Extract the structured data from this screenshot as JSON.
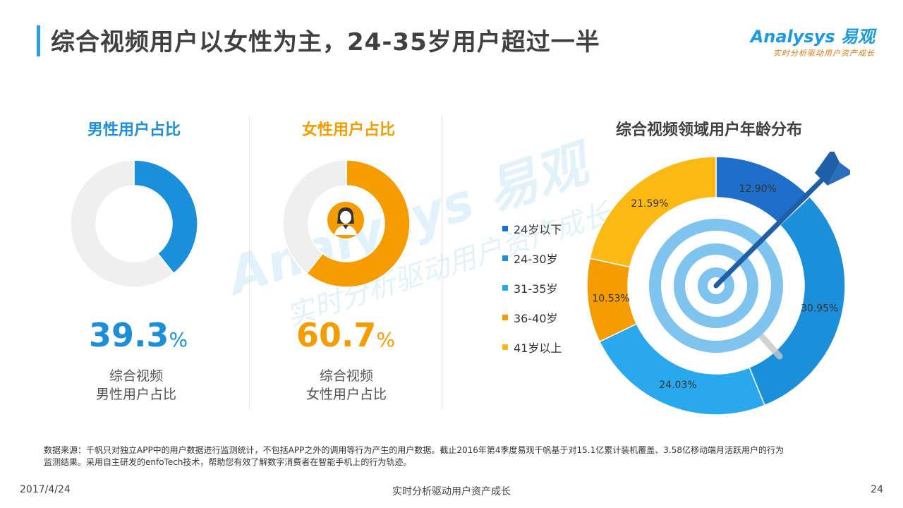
{
  "page": {
    "title": "综合视频用户以女性为主，24-35岁用户超过一半"
  },
  "logo": {
    "brand": "Analysys 易观",
    "slogan": "实时分析驱动用户资产成长"
  },
  "watermark": {
    "brand": "Analysys 易观",
    "slogan": "实时分析驱动用户资产成长"
  },
  "male_panel": {
    "heading": "男性用户占比",
    "value": "39.3",
    "unit": "%",
    "caption_line1": "综合视频",
    "caption_line2": "男性用户占比",
    "color": "#1b8fd9"
  },
  "female_panel": {
    "heading": "女性用户占比",
    "value": "60.7",
    "unit": "%",
    "caption_line1": "综合视频",
    "caption_line2": "女性用户占比",
    "color": "#f59c00",
    "icon": "female-user-icon"
  },
  "age_panel": {
    "heading": "综合视频领域用户年龄分布",
    "icon": "target-arrow-icon"
  },
  "chart_data": [
    {
      "type": "pie",
      "title": "男性用户占比",
      "categories": [
        "男性",
        "其他"
      ],
      "values": [
        39.3,
        60.7
      ],
      "colors": [
        "#1b8fd9",
        "#efefef"
      ]
    },
    {
      "type": "pie",
      "title": "女性用户占比",
      "categories": [
        "女性",
        "其他"
      ],
      "values": [
        60.7,
        39.3
      ],
      "colors": [
        "#f59c00",
        "#efefef"
      ]
    },
    {
      "type": "pie",
      "title": "综合视频领域用户年龄分布",
      "categories": [
        "24岁以下",
        "24-30岁",
        "31-35岁",
        "36-40岁",
        "41岁以上"
      ],
      "values": [
        12.9,
        30.95,
        24.03,
        10.53,
        21.59
      ],
      "labels": [
        "12.90%",
        "30.95%",
        "24.03%",
        "10.53%",
        "21.59%"
      ],
      "colors": [
        "#1f6fca",
        "#1b8fd9",
        "#29a8ee",
        "#f59c00",
        "#fdb913"
      ],
      "legend_position": "left"
    }
  ],
  "footnote": {
    "line1": "数据来源：千帆只对独立APP中的用户数据进行监测统计，不包括APP之外的调用等行为产生的用户数据。截止2016年第4季度易观千帆基于对15.1亿累计装机覆盖、3.58亿移动端月活跃用户的行为",
    "line2": "监测结果。采用自主研发的enfoTech技术，帮助您有效了解数字消费者在智能手机上的行为轨迹。"
  },
  "footer": {
    "date": "2017/4/24",
    "slogan": "实时分析驱动用户资产成长",
    "page_number": "24"
  }
}
